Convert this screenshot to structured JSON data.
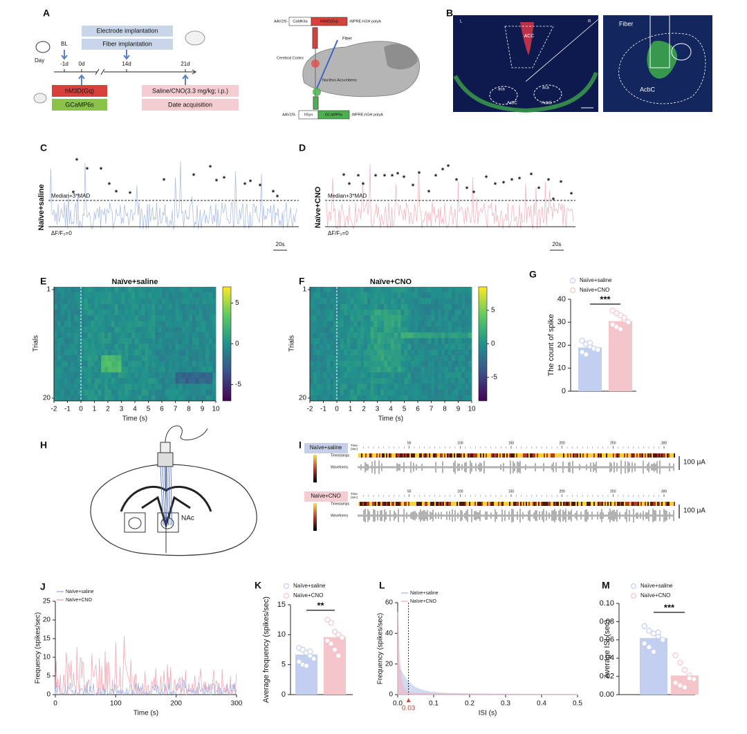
{
  "letters": [
    "A",
    "B",
    "C",
    "D",
    "E",
    "F",
    "G",
    "H",
    "I",
    "J",
    "K",
    "L",
    "M"
  ],
  "A": {
    "day": "Day",
    "bl": "BL",
    "days": [
      "-1d",
      "0d",
      "14d",
      "21d"
    ],
    "electrode": "Electrode implantation",
    "fiber": "Fiber implantation",
    "virus1": "hM3D(Gq)",
    "virus2": "GCaMP6s",
    "treatment": "Saline/CNO(3.3 mg/kg; i.p.)",
    "acquisition": "Date acquisition",
    "construct1": [
      "AAV2/9-",
      "CaMKIIa",
      "hM3D(Gq)",
      "-WPRE-hGH polyA"
    ],
    "construct2": [
      "AAV2/9-",
      "hSyn",
      "GCaMP6s",
      "-WPRE-hGH polyA"
    ],
    "fiber_label": "Fiber",
    "cortex": "Cerebral Cortex",
    "nucleus": "Nucleus Accumbens"
  },
  "B": {
    "side_left": "L",
    "side_right": "R",
    "acc": "ACC",
    "aca": [
      "aca",
      "aca"
    ],
    "acbc": [
      "AcbC",
      "AcbC"
    ],
    "zoom_fiber": "Fiber",
    "zoom_acbc": "AcbC"
  },
  "C": {
    "label": "Naïve+saline",
    "threshold": "Median+3*MAD",
    "baseline": "ΔF/F₀=0",
    "scale": "20s",
    "peak": "*"
  },
  "D": {
    "label": "Naïve+CNO",
    "threshold": "Median+3*MAD",
    "baseline": "ΔF/F₀=0",
    "scale": "20s",
    "peak": "*"
  },
  "E": {
    "title": "Naïve+saline",
    "ylabel": "Trials",
    "yticks": [
      1,
      20
    ],
    "xlim": [
      -2,
      10
    ],
    "xticks": [
      -2,
      -1,
      0,
      1,
      2,
      3,
      4,
      5,
      6,
      7,
      8,
      9,
      10
    ],
    "xlabel": "Time (s)",
    "clim": [
      -7,
      7
    ],
    "cticks": [
      5,
      0,
      -5
    ]
  },
  "F": {
    "title": "Naïve+CNO",
    "ylabel": "Trials",
    "yticks": [
      1,
      20
    ],
    "xlim": [
      -2,
      10
    ],
    "xticks": [
      -2,
      -1,
      0,
      1,
      2,
      3,
      4,
      5,
      6,
      7,
      8,
      9,
      10
    ],
    "xlabel": "Time (s)",
    "clim": [
      -8.5,
      8.5
    ],
    "cticks": [
      5,
      0,
      -5
    ]
  },
  "G": {
    "type": "bar",
    "series": [
      {
        "name": "Naïve+saline",
        "color": "#c3cff0",
        "value": 19,
        "points": [
          22,
          20.5,
          19.5,
          18.5,
          18,
          17,
          16,
          21
        ]
      },
      {
        "name": "Naïve+CNO",
        "color": "#f5c5cc",
        "value": 30.5,
        "points": [
          35,
          34,
          33,
          31,
          30,
          29,
          28,
          27,
          32
        ]
      }
    ],
    "ylim": [
      0,
      40
    ],
    "yticks": [
      0,
      10,
      20,
      30,
      40
    ],
    "ylabel": "The count of spike",
    "significance": "***"
  },
  "H": {
    "region": "NAc"
  },
  "I": {
    "groups": [
      "Naïve+saline",
      "Naïve+CNO"
    ],
    "time_label": [
      "Time",
      "(sec)"
    ],
    "xlim": [
      0,
      300
    ],
    "xticks": [
      50,
      100,
      150,
      200,
      250,
      300
    ],
    "timestamps": "Timestamps",
    "waveforms": "Waveforms",
    "scale": "100 μA"
  },
  "J": {
    "type": "line",
    "series": [
      {
        "name": "Naïve+saline",
        "color": "#9fb3e3"
      },
      {
        "name": "Naïve+CNO",
        "color": "#f0a9b5"
      }
    ],
    "xlim": [
      0,
      300
    ],
    "xticks": [
      0,
      100,
      200,
      300
    ],
    "ylim": [
      0,
      25
    ],
    "yticks": [
      0,
      5,
      10,
      15,
      20,
      25
    ],
    "xlabel": "Time (s)",
    "ylabel": "Frequency (spikes/sec)"
  },
  "K": {
    "type": "bar",
    "series": [
      {
        "name": "Naïve+saline",
        "color": "#c3cff0",
        "value": 6.7,
        "points": [
          7.8,
          7.5,
          7,
          6.5,
          6,
          5.5,
          5,
          4.8,
          7.2
        ]
      },
      {
        "name": "Naïve+CNO",
        "color": "#f5c5cc",
        "value": 9.6,
        "points": [
          12.5,
          12,
          10.5,
          10,
          9.5,
          9,
          8.5,
          7.5,
          6.5
        ]
      }
    ],
    "ylim": [
      0,
      15
    ],
    "yticks": [
      0,
      5,
      10,
      15
    ],
    "ylabel": "Average frequency (spikes/sec)",
    "significance": "**"
  },
  "L": {
    "type": "area",
    "series": [
      {
        "name": "Naïve+saline",
        "color": "#b5c3ea"
      },
      {
        "name": "Naïve+CNO",
        "color": "#f3b8c2"
      }
    ],
    "xlim": [
      0,
      0.5
    ],
    "xticks": [
      {
        "value": 0,
        "label": "0.0"
      },
      0.1,
      0.2,
      0.3,
      0.4,
      0.5
    ],
    "ylim": [
      0,
      60
    ],
    "yticks": [
      0,
      20,
      40,
      60
    ],
    "xlabel": "ISI (s)",
    "ylabel": "Frequency (spikes/sec)",
    "marker": 0.03,
    "marker_color": "#d0453a"
  },
  "M": {
    "type": "bar",
    "series": [
      {
        "name": "Naïve+saline",
        "color": "#c3cff0",
        "value": 0.062,
        "points": [
          0.075,
          0.07,
          0.067,
          0.064,
          0.06,
          0.056,
          0.052,
          0.047,
          0.068
        ]
      },
      {
        "name": "Naïve+CNO",
        "color": "#f5c5cc",
        "value": 0.021,
        "points": [
          0.043,
          0.035,
          0.027,
          0.021,
          0.017,
          0.013,
          0.01,
          0.008,
          0.018
        ]
      }
    ],
    "ylim": [
      0,
      0.1
    ],
    "yticks": [
      {
        "value": 0,
        "label": "0.00"
      },
      0.02,
      0.04,
      0.06,
      0.08,
      {
        "value": 0.1,
        "label": "0.10"
      }
    ],
    "ylabel": "Average ISI (sec)",
    "significance": "***"
  }
}
